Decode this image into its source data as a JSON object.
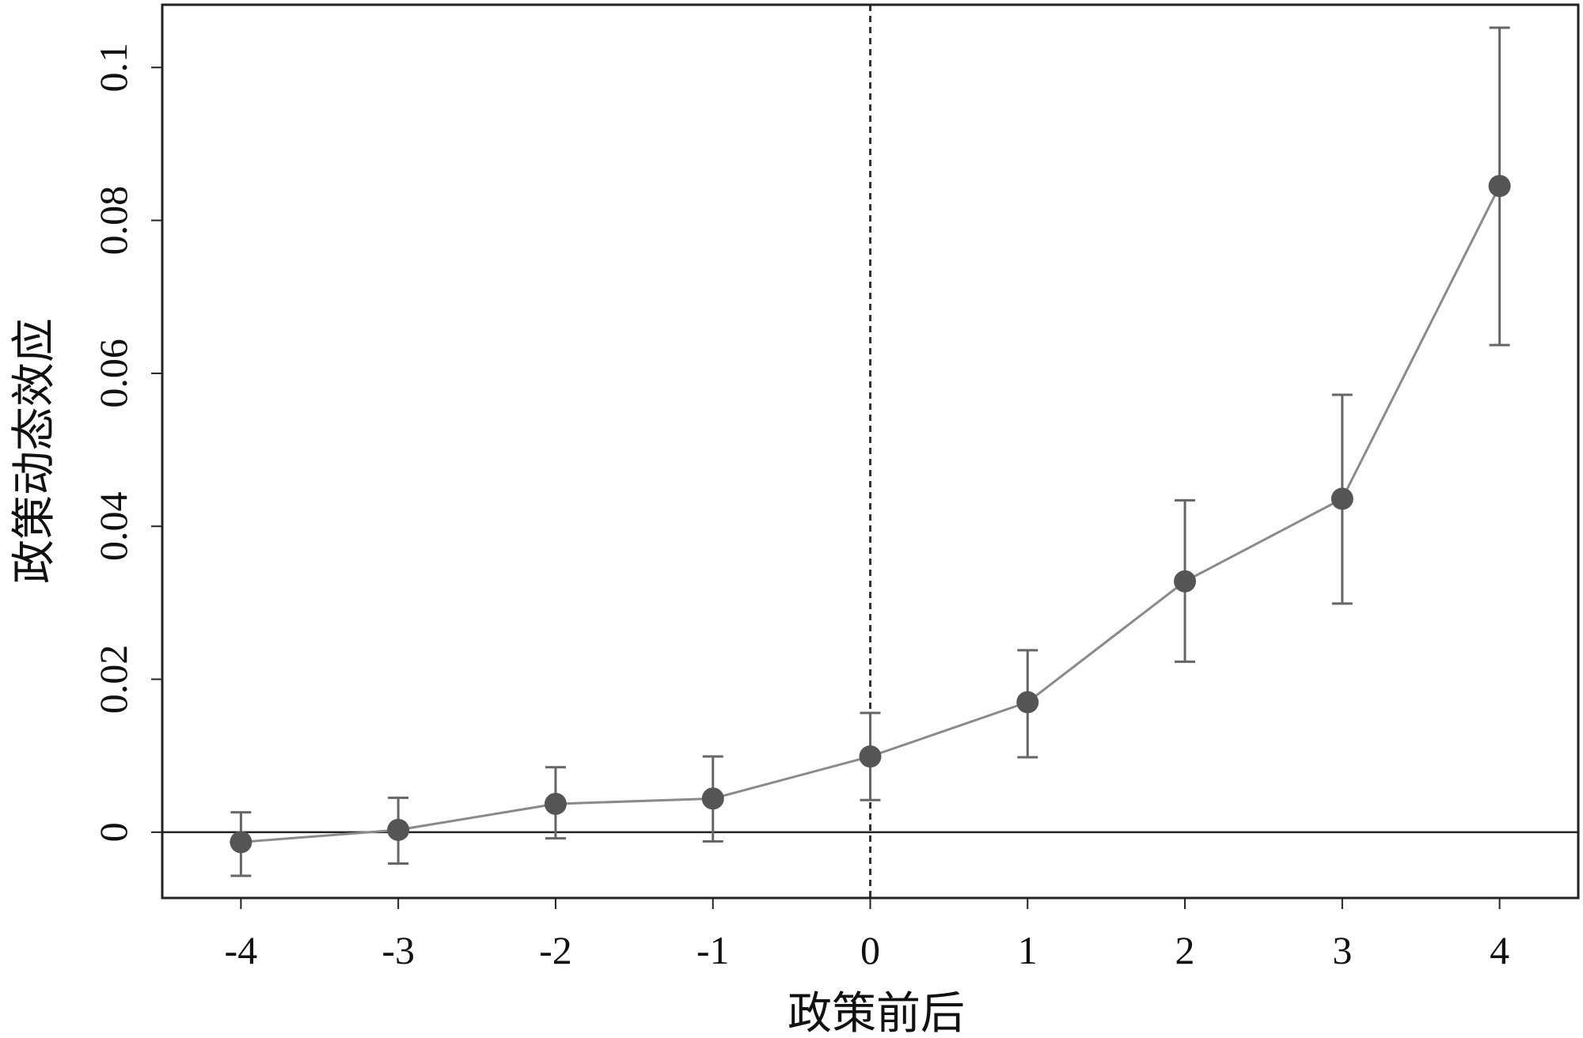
{
  "chart_data": {
    "type": "line_errorbar",
    "x_label": "政策前后",
    "y_label": "政策动态效应",
    "x": [
      -4,
      -3,
      -2,
      -1,
      0,
      1,
      2,
      3,
      4
    ],
    "series": [
      {
        "color": "#555555",
        "values": [
          -0.0013,
          0.0003,
          0.0037,
          0.0044,
          0.0099,
          0.017,
          0.0328,
          0.0436,
          0.0845
        ],
        "lower": [
          -0.0057,
          -0.0041,
          -0.0008,
          -0.0012,
          0.0042,
          0.0098,
          0.0223,
          0.0299,
          0.0637
        ],
        "upper": [
          0.0026,
          0.0045,
          0.0085,
          0.0099,
          0.0156,
          0.0238,
          0.0434,
          0.0572,
          0.1052
        ]
      }
    ],
    "line_color": "#8a8a8a",
    "xlim": [
      -4.5,
      4.5
    ],
    "ylim": [
      -0.0086,
      0.1082
    ],
    "xticks": [
      -4,
      -3,
      -2,
      -1,
      0,
      1,
      2,
      3,
      4
    ],
    "yticks": [
      0,
      0.02,
      0.04,
      0.06,
      0.08,
      0.1
    ],
    "vline": 0,
    "hline": 0
  }
}
